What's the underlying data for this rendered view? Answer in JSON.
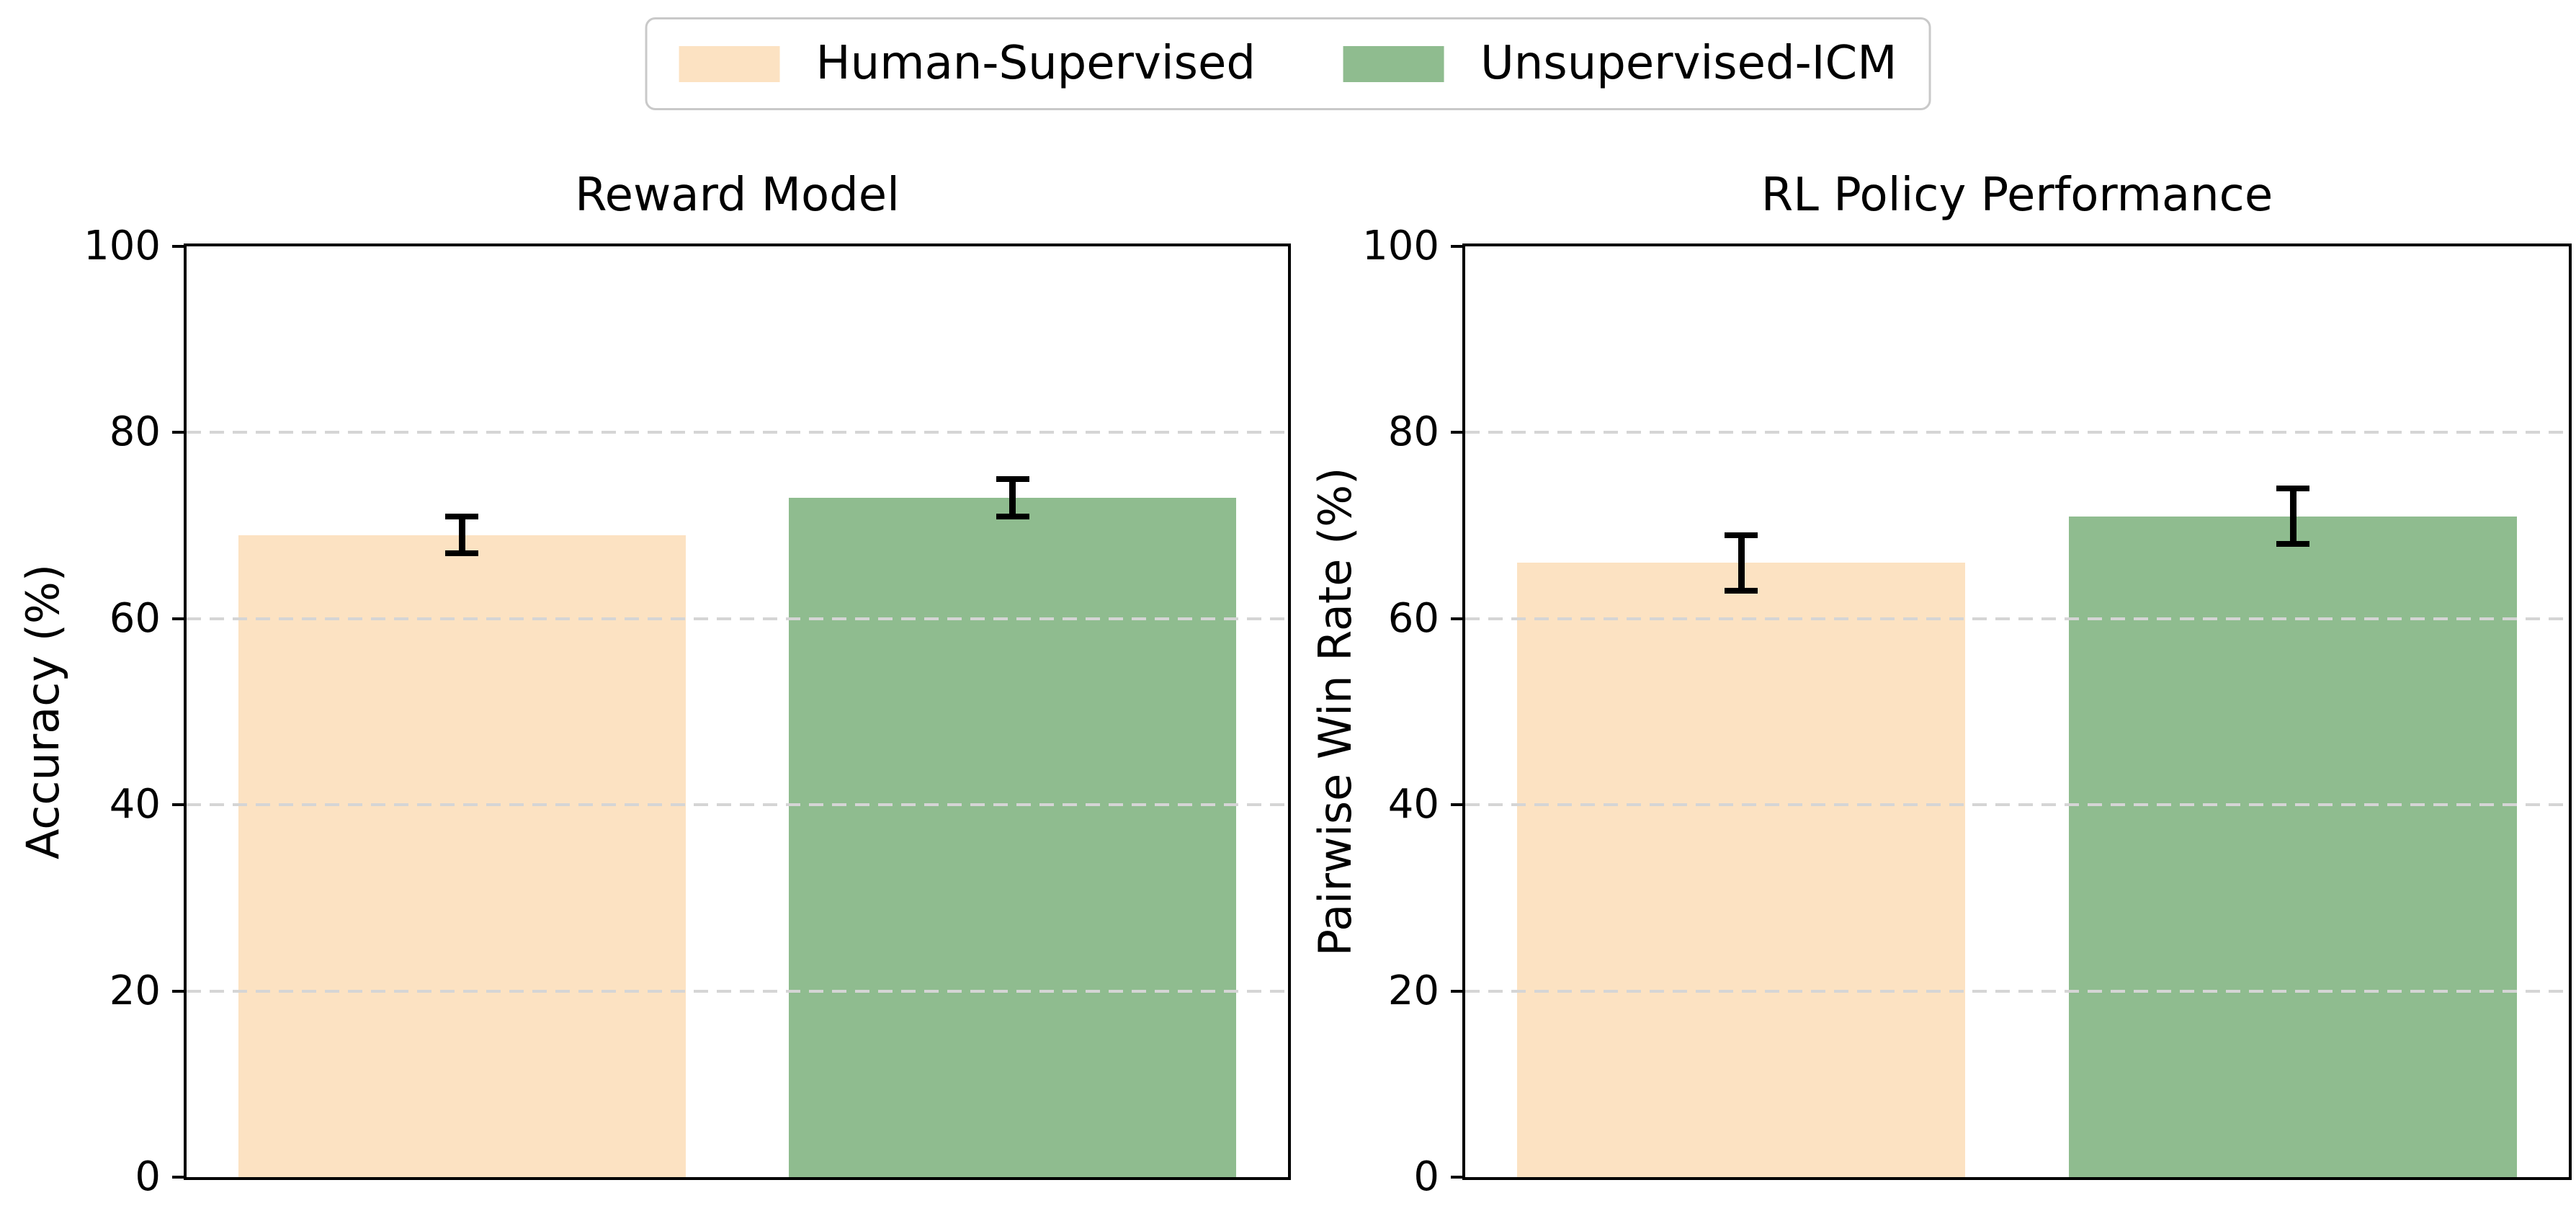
{
  "legend": {
    "items": [
      {
        "label": "Human-Supervised",
        "color": "#FCE2C2"
      },
      {
        "label": "Unsupervised-ICM",
        "color": "#8FBC8F"
      }
    ],
    "border_color": "#c9c9c9"
  },
  "style": {
    "grid_color": "#d5d5d5",
    "grid_style": "dashed",
    "spine_color": "#000000",
    "errorbar_color": "#000000",
    "background": "#ffffff"
  },
  "chart_data": [
    {
      "type": "bar",
      "title": "Reward Model",
      "ylabel": "Accuracy (%)",
      "xlabel": "",
      "categories": [
        "Human-Supervised",
        "Unsupervised-ICM"
      ],
      "values": [
        69,
        73
      ],
      "errors": [
        2,
        2
      ],
      "colors": [
        "#FCE2C2",
        "#8FBC8F"
      ],
      "ylim": [
        0,
        100
      ],
      "yticks": [
        0,
        20,
        40,
        60,
        80,
        100
      ],
      "grid": true,
      "legend_position": "top-center-above-figure"
    },
    {
      "type": "bar",
      "title": "RL Policy Performance",
      "ylabel": "Pairwise Win Rate (%)",
      "xlabel": "",
      "categories": [
        "Human-Supervised",
        "Unsupervised-ICM"
      ],
      "values": [
        66,
        71
      ],
      "errors": [
        3,
        3
      ],
      "colors": [
        "#FCE2C2",
        "#8FBC8F"
      ],
      "ylim": [
        0,
        100
      ],
      "yticks": [
        0,
        20,
        40,
        60,
        80,
        100
      ],
      "grid": true,
      "legend_position": "top-center-above-figure"
    }
  ]
}
